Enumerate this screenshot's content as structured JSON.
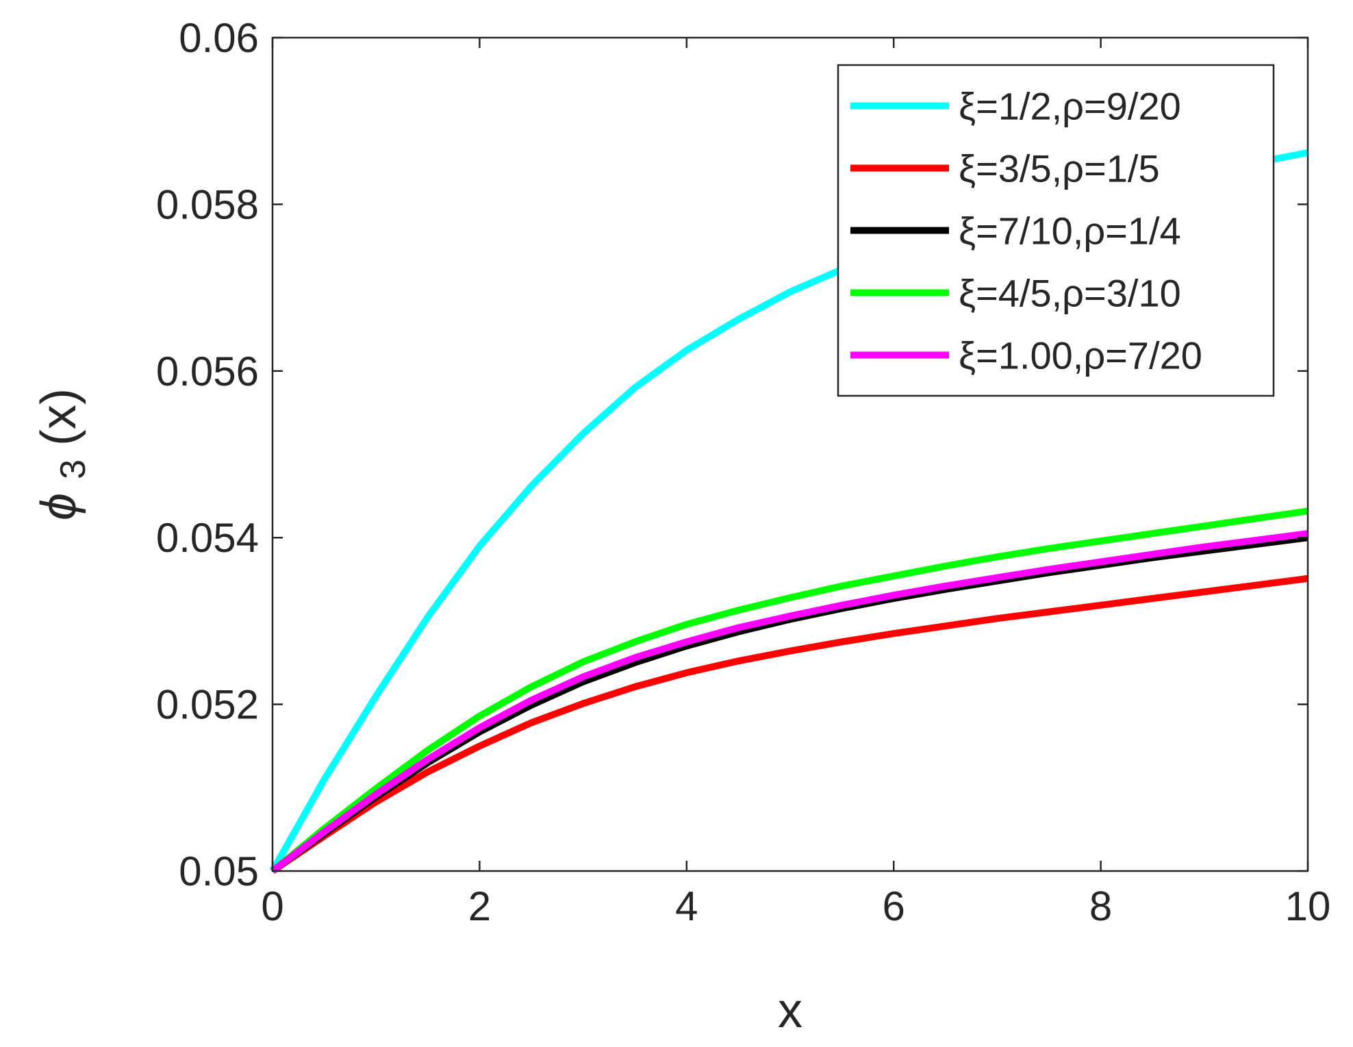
{
  "chart_data": {
    "type": "line",
    "xlabel": "x",
    "ylabel": {
      "base": "ϕ",
      "sub": "3",
      "rest": "(x)"
    },
    "xlim": [
      0,
      10
    ],
    "ylim": [
      0.05,
      0.06
    ],
    "xticks": [
      0,
      2,
      4,
      6,
      8,
      10
    ],
    "xtick_labels": [
      "0",
      "2",
      "4",
      "6",
      "8",
      "10"
    ],
    "yticks": [
      0.05,
      0.052,
      0.054,
      0.056,
      0.058,
      0.06
    ],
    "ytick_labels": [
      "0.05",
      "0.052",
      "0.054",
      "0.056",
      "0.058",
      "0.06"
    ],
    "grid": false,
    "legend_position": "top-right",
    "x": [
      0,
      0.5,
      1,
      1.5,
      2,
      2.5,
      3,
      3.5,
      4,
      4.5,
      5,
      5.5,
      6,
      6.5,
      7,
      7.5,
      8,
      8.5,
      9,
      9.5,
      10
    ],
    "series": [
      {
        "name": "ξ=1/2,ρ=9/20",
        "color": "#00FFFF",
        "values": [
          0.05,
          0.0511,
          0.0521,
          0.05305,
          0.0539,
          0.05462,
          0.05525,
          0.0558,
          0.05625,
          0.05662,
          0.05695,
          0.05722,
          0.05745,
          0.05765,
          0.05782,
          0.05798,
          0.05812,
          0.05825,
          0.05838,
          0.0585,
          0.05862
        ]
      },
      {
        "name": "ξ=3/5,ρ=1/5",
        "color": "#FF0000",
        "values": [
          0.05,
          0.05042,
          0.05083,
          0.05119,
          0.0515,
          0.05178,
          0.05201,
          0.05221,
          0.05238,
          0.05252,
          0.05264,
          0.05275,
          0.05285,
          0.05294,
          0.05303,
          0.05311,
          0.05319,
          0.05327,
          0.05335,
          0.05343,
          0.05351
        ]
      },
      {
        "name": "ξ=7/10,ρ=1/4",
        "color": "#000000",
        "values": [
          0.05,
          0.05045,
          0.05089,
          0.0513,
          0.05167,
          0.05199,
          0.05227,
          0.0525,
          0.0527,
          0.05287,
          0.05302,
          0.05315,
          0.05327,
          0.05338,
          0.05348,
          0.05358,
          0.05367,
          0.05376,
          0.05384,
          0.05392,
          0.054
        ]
      },
      {
        "name": "ξ=4/5,ρ=3/10",
        "color": "#00FF00",
        "values": [
          0.05,
          0.05051,
          0.05099,
          0.05145,
          0.05186,
          0.05221,
          0.05251,
          0.05275,
          0.05296,
          0.05313,
          0.05328,
          0.05342,
          0.05354,
          0.05366,
          0.05377,
          0.05387,
          0.05396,
          0.05405,
          0.05414,
          0.05423,
          0.05432
        ]
      },
      {
        "name": "ξ=1.00,ρ=7/20",
        "color": "#FF00FF",
        "values": [
          0.05,
          0.05047,
          0.05092,
          0.05134,
          0.05172,
          0.05205,
          0.05233,
          0.05256,
          0.05275,
          0.05292,
          0.05306,
          0.05319,
          0.05331,
          0.05342,
          0.05352,
          0.05362,
          0.05371,
          0.0538,
          0.05389,
          0.05397,
          0.05405
        ]
      }
    ]
  }
}
